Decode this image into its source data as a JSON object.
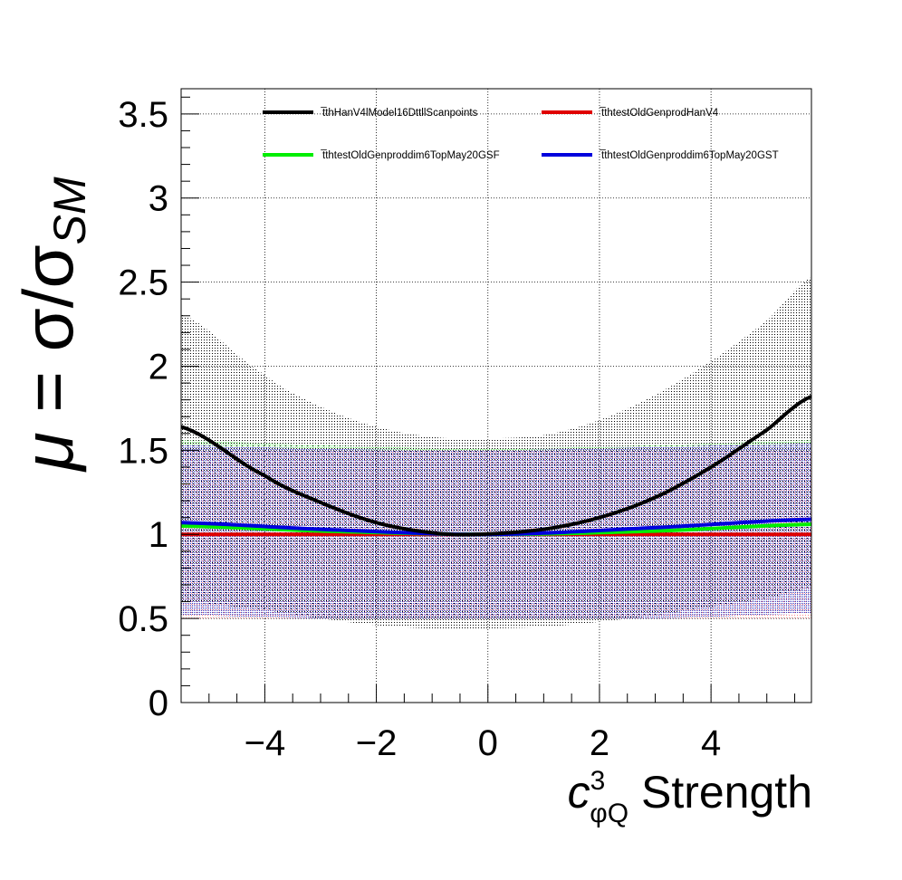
{
  "chart_data": {
    "type": "line",
    "xlabel": {
      "main": "c",
      "sup": "3",
      "sub": "φQ",
      "rest": " Strength"
    },
    "ylabel": {
      "mu": "μ",
      "eq": " = σ/σ",
      "sub": "SM"
    },
    "xlim": [
      -5.5,
      5.8
    ],
    "ylim": [
      0,
      3.65
    ],
    "xticks": [
      {
        "v": -4,
        "label": "−4"
      },
      {
        "v": -2,
        "label": "−2"
      },
      {
        "v": 0,
        "label": "0"
      },
      {
        "v": 2,
        "label": "2"
      },
      {
        "v": 4,
        "label": "4"
      }
    ],
    "yticks": [
      {
        "v": 0,
        "label": "0"
      },
      {
        "v": 0.5,
        "label": "0.5"
      },
      {
        "v": 1,
        "label": "1"
      },
      {
        "v": 1.5,
        "label": "1.5"
      },
      {
        "v": 2,
        "label": "2"
      },
      {
        "v": 2.5,
        "label": "2.5"
      },
      {
        "v": 3,
        "label": "3"
      },
      {
        "v": 3.5,
        "label": "3.5"
      }
    ],
    "grid": true,
    "legend_position": "top",
    "series": [
      {
        "name": "t̅thHanV4lModel16DttllScanpoints",
        "color": "#000000",
        "band_color": "#000000",
        "x": [
          -5.5,
          -4,
          -3,
          -2,
          -1,
          -0.2,
          1,
          2,
          3,
          4,
          5,
          5.8
        ],
        "y": [
          1.64,
          1.35,
          1.19,
          1.07,
          1.01,
          1.0,
          1.03,
          1.1,
          1.22,
          1.4,
          1.62,
          1.82
        ],
        "band_low": [
          0.6,
          0.55,
          0.5,
          0.46,
          0.44,
          0.44,
          0.45,
          0.48,
          0.52,
          0.57,
          0.62,
          0.68
        ],
        "band_high": [
          2.31,
          1.95,
          1.76,
          1.64,
          1.58,
          1.57,
          1.59,
          1.68,
          1.83,
          2.03,
          2.27,
          2.53
        ]
      },
      {
        "name": "t̅thtestOldGenprodHanV4",
        "color": "#e00000",
        "band_color": "#ff9999",
        "x": [
          -5.5,
          0,
          5.8
        ],
        "y": [
          1.0,
          1.0,
          1.0
        ],
        "band_low": [
          0.5,
          0.5,
          0.5
        ],
        "band_high": [
          1.5,
          1.5,
          1.5
        ]
      },
      {
        "name": "t̅thtestOldGenproddim6TopMay20GSF",
        "color": "#00ee00",
        "band_color": "#77ee77",
        "x": [
          -5.5,
          -3,
          0,
          3,
          5.8
        ],
        "y": [
          1.05,
          1.02,
          1.0,
          1.02,
          1.06
        ],
        "band_low": [
          0.56,
          0.53,
          0.51,
          0.53,
          0.58
        ],
        "band_high": [
          1.56,
          1.53,
          1.51,
          1.53,
          1.56
        ]
      },
      {
        "name": "t̅thtestOldGenproddim6TopMay20GST",
        "color": "#0000dd",
        "band_color": "#0000aa",
        "x": [
          -5.5,
          -3,
          0,
          3,
          5.8
        ],
        "y": [
          1.07,
          1.03,
          1.0,
          1.04,
          1.09
        ],
        "band_low": [
          0.52,
          0.5,
          0.5,
          0.5,
          0.53
        ],
        "band_high": [
          1.53,
          1.51,
          1.5,
          1.52,
          1.54
        ]
      }
    ]
  }
}
